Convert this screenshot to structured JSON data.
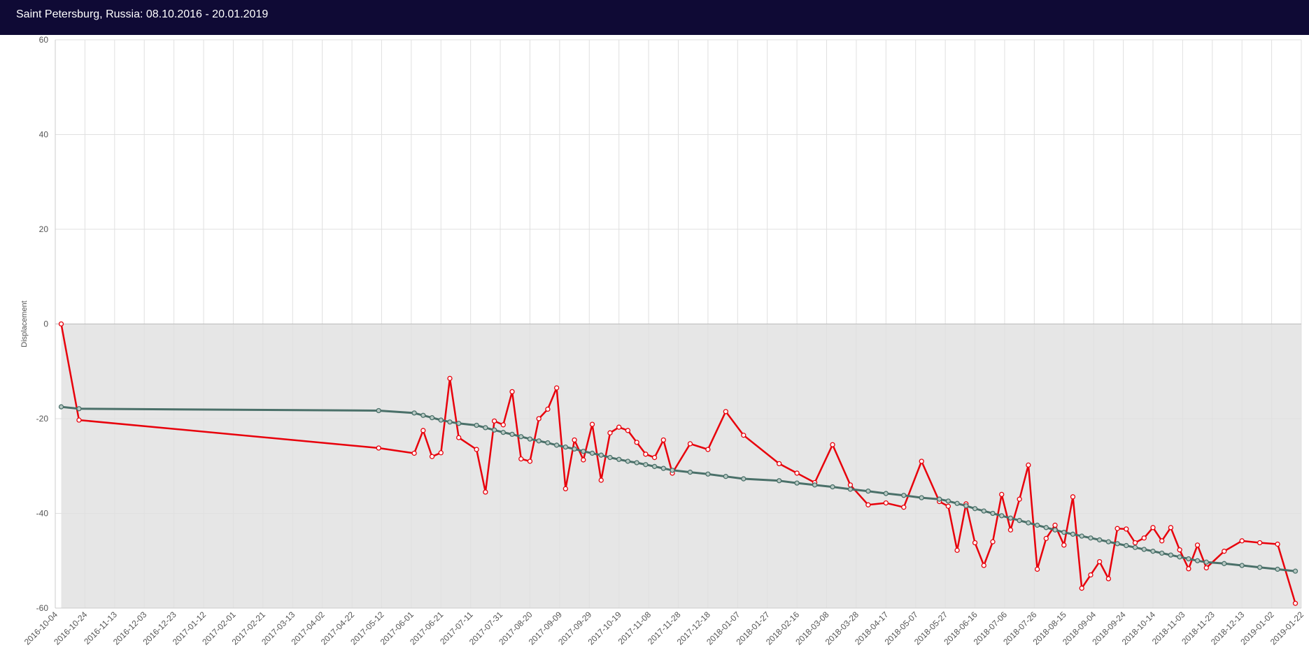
{
  "header": {
    "title": "Saint Petersburg, Russia: 08.10.2016 - 20.01.2019"
  },
  "chart_data": {
    "type": "line",
    "title": "Saint Petersburg, Russia: 08.10.2016 - 20.01.2019",
    "xlabel": "",
    "ylabel": "Displacement",
    "ylim": [
      -60,
      60
    ],
    "yticks": [
      60,
      40,
      20,
      0,
      -20,
      -40,
      -60
    ],
    "xlim": [
      "2016-10-04",
      "2019-01-22"
    ],
    "xticks": [
      "2016-10-04",
      "2016-10-24",
      "2016-11-13",
      "2016-12-03",
      "2016-12-23",
      "2017-01-12",
      "2017-02-01",
      "2017-02-21",
      "2017-03-13",
      "2017-04-02",
      "2017-04-22",
      "2017-05-12",
      "2017-06-01",
      "2017-06-21",
      "2017-07-11",
      "2017-07-31",
      "2017-08-20",
      "2017-09-09",
      "2017-09-29",
      "2017-10-19",
      "2017-11-08",
      "2017-11-28",
      "2017-12-18",
      "2018-01-07",
      "2018-01-27",
      "2018-02-16",
      "2018-03-08",
      "2018-03-28",
      "2018-04-17",
      "2018-05-07",
      "2018-05-27",
      "2018-06-16",
      "2018-07-06",
      "2018-07-26",
      "2018-08-15",
      "2018-09-04",
      "2018-09-24",
      "2018-10-14",
      "2018-11-03",
      "2018-11-23",
      "2018-12-13",
      "2019-01-02",
      "2019-01-22"
    ],
    "grid": true,
    "shaded_range": [
      -60,
      0
    ],
    "colors": {
      "measured": "#e8000b",
      "trend": "#4a7069",
      "shade": "#e6e6e6",
      "grid": "#e0e0e0",
      "zero": "#bbbbbb"
    },
    "series": [
      {
        "kind": "measured",
        "points": [
          [
            "2016-10-08",
            0
          ],
          [
            "2016-10-20",
            -20.3
          ],
          [
            "2017-05-10",
            -26.2
          ],
          [
            "2017-06-03",
            -27.3
          ],
          [
            "2017-06-09",
            -22.5
          ],
          [
            "2017-06-15",
            -28
          ],
          [
            "2017-06-21",
            -27.2
          ],
          [
            "2017-06-27",
            -11.5
          ],
          [
            "2017-07-03",
            -24
          ],
          [
            "2017-07-15",
            -26.5
          ],
          [
            "2017-07-21",
            -35.5
          ],
          [
            "2017-07-27",
            -20.5
          ],
          [
            "2017-08-02",
            -21.3
          ],
          [
            "2017-08-08",
            -14.3
          ],
          [
            "2017-08-14",
            -28.5
          ],
          [
            "2017-08-20",
            -29
          ],
          [
            "2017-08-26",
            -20
          ],
          [
            "2017-09-01",
            -18
          ],
          [
            "2017-09-07",
            -13.5
          ],
          [
            "2017-09-13",
            -34.8
          ],
          [
            "2017-09-19",
            -24.5
          ],
          [
            "2017-09-25",
            -28.7
          ],
          [
            "2017-10-01",
            -21.2
          ],
          [
            "2017-10-07",
            -33
          ],
          [
            "2017-10-13",
            -23
          ],
          [
            "2017-10-19",
            -21.8
          ],
          [
            "2017-10-25",
            -22.5
          ],
          [
            "2017-10-31",
            -25
          ],
          [
            "2017-11-06",
            -27.5
          ],
          [
            "2017-11-12",
            -28.2
          ],
          [
            "2017-11-18",
            -24.5
          ],
          [
            "2017-11-24",
            -31.5
          ],
          [
            "2017-12-06",
            -25.3
          ],
          [
            "2017-12-18",
            -26.5
          ],
          [
            "2017-12-30",
            -18.5
          ],
          [
            "2018-01-11",
            -23.5
          ],
          [
            "2018-02-04",
            -29.5
          ],
          [
            "2018-02-16",
            -31.5
          ],
          [
            "2018-02-28",
            -33.5
          ],
          [
            "2018-03-12",
            -25.5
          ],
          [
            "2018-03-24",
            -34
          ],
          [
            "2018-04-05",
            -38.2
          ],
          [
            "2018-04-17",
            -37.8
          ],
          [
            "2018-04-29",
            -38.7
          ],
          [
            "2018-05-11",
            -29
          ],
          [
            "2018-05-23",
            -37.5
          ],
          [
            "2018-05-29",
            -38.5
          ],
          [
            "2018-06-04",
            -47.8
          ],
          [
            "2018-06-10",
            -38
          ],
          [
            "2018-06-16",
            -46.2
          ],
          [
            "2018-06-22",
            -51
          ],
          [
            "2018-06-28",
            -46
          ],
          [
            "2018-07-04",
            -36
          ],
          [
            "2018-07-10",
            -43.5
          ],
          [
            "2018-07-16",
            -37
          ],
          [
            "2018-07-22",
            -29.8
          ],
          [
            "2018-07-28",
            -51.8
          ],
          [
            "2018-08-03",
            -45.3
          ],
          [
            "2018-08-09",
            -42.5
          ],
          [
            "2018-08-15",
            -46.7
          ],
          [
            "2018-08-21",
            -36.5
          ],
          [
            "2018-08-27",
            -55.8
          ],
          [
            "2018-09-02",
            -53
          ],
          [
            "2018-09-08",
            -50.2
          ],
          [
            "2018-09-14",
            -53.8
          ],
          [
            "2018-09-20",
            -43.2
          ],
          [
            "2018-09-26",
            -43.3
          ],
          [
            "2018-10-02",
            -46.2
          ],
          [
            "2018-10-08",
            -45.2
          ],
          [
            "2018-10-14",
            -43
          ],
          [
            "2018-10-20",
            -45.8
          ],
          [
            "2018-10-26",
            -43
          ],
          [
            "2018-11-01",
            -47.7
          ],
          [
            "2018-11-07",
            -51.7
          ],
          [
            "2018-11-13",
            -46.7
          ],
          [
            "2018-11-19",
            -51.5
          ],
          [
            "2018-12-01",
            -48
          ],
          [
            "2018-12-13",
            -45.8
          ],
          [
            "2018-12-25",
            -46.2
          ],
          [
            "2019-01-06",
            -46.5
          ],
          [
            "2019-01-18",
            -59
          ]
        ]
      },
      {
        "kind": "trend",
        "points": [
          [
            "2016-10-08",
            -17.5
          ],
          [
            "2016-10-20",
            -17.9
          ],
          [
            "2017-05-10",
            -18.3
          ],
          [
            "2017-06-03",
            -18.8
          ],
          [
            "2017-06-09",
            -19.3
          ],
          [
            "2017-06-15",
            -19.8
          ],
          [
            "2017-06-21",
            -20.3
          ],
          [
            "2017-06-27",
            -20.7
          ],
          [
            "2017-07-03",
            -21
          ],
          [
            "2017-07-15",
            -21.4
          ],
          [
            "2017-07-21",
            -21.9
          ],
          [
            "2017-07-27",
            -22.4
          ],
          [
            "2017-08-02",
            -22.9
          ],
          [
            "2017-08-08",
            -23.3
          ],
          [
            "2017-08-14",
            -23.8
          ],
          [
            "2017-08-20",
            -24.3
          ],
          [
            "2017-08-26",
            -24.7
          ],
          [
            "2017-09-01",
            -25.1
          ],
          [
            "2017-09-07",
            -25.6
          ],
          [
            "2017-09-13",
            -26
          ],
          [
            "2017-09-19",
            -26.4
          ],
          [
            "2017-09-25",
            -26.9
          ],
          [
            "2017-10-01",
            -27.3
          ],
          [
            "2017-10-07",
            -27.7
          ],
          [
            "2017-10-13",
            -28.2
          ],
          [
            "2017-10-19",
            -28.6
          ],
          [
            "2017-10-25",
            -29
          ],
          [
            "2017-10-31",
            -29.3
          ],
          [
            "2017-11-06",
            -29.7
          ],
          [
            "2017-11-12",
            -30.1
          ],
          [
            "2017-11-18",
            -30.5
          ],
          [
            "2017-11-24",
            -30.9
          ],
          [
            "2017-12-06",
            -31.3
          ],
          [
            "2017-12-18",
            -31.7
          ],
          [
            "2017-12-30",
            -32.2
          ],
          [
            "2018-01-11",
            -32.7
          ],
          [
            "2018-02-04",
            -33.1
          ],
          [
            "2018-02-16",
            -33.6
          ],
          [
            "2018-02-28",
            -34
          ],
          [
            "2018-03-12",
            -34.4
          ],
          [
            "2018-03-24",
            -34.9
          ],
          [
            "2018-04-05",
            -35.3
          ],
          [
            "2018-04-17",
            -35.8
          ],
          [
            "2018-04-29",
            -36.2
          ],
          [
            "2018-05-11",
            -36.7
          ],
          [
            "2018-05-23",
            -37
          ],
          [
            "2018-05-29",
            -37.4
          ],
          [
            "2018-06-04",
            -37.9
          ],
          [
            "2018-06-10",
            -38.4
          ],
          [
            "2018-06-16",
            -39
          ],
          [
            "2018-06-22",
            -39.5
          ],
          [
            "2018-06-28",
            -40
          ],
          [
            "2018-07-04",
            -40.5
          ],
          [
            "2018-07-10",
            -41
          ],
          [
            "2018-07-16",
            -41.5
          ],
          [
            "2018-07-22",
            -42
          ],
          [
            "2018-07-28",
            -42.5
          ],
          [
            "2018-08-03",
            -43
          ],
          [
            "2018-08-09",
            -43.5
          ],
          [
            "2018-08-15",
            -44
          ],
          [
            "2018-08-21",
            -44.4
          ],
          [
            "2018-08-27",
            -44.8
          ],
          [
            "2018-09-02",
            -45.2
          ],
          [
            "2018-09-08",
            -45.6
          ],
          [
            "2018-09-14",
            -46
          ],
          [
            "2018-09-20",
            -46.4
          ],
          [
            "2018-09-26",
            -46.8
          ],
          [
            "2018-10-02",
            -47.2
          ],
          [
            "2018-10-08",
            -47.6
          ],
          [
            "2018-10-14",
            -48
          ],
          [
            "2018-10-20",
            -48.4
          ],
          [
            "2018-10-26",
            -48.8
          ],
          [
            "2018-11-01",
            -49.2
          ],
          [
            "2018-11-07",
            -49.6
          ],
          [
            "2018-11-13",
            -50
          ],
          [
            "2018-11-19",
            -50.3
          ],
          [
            "2018-12-01",
            -50.6
          ],
          [
            "2018-12-13",
            -51
          ],
          [
            "2018-12-25",
            -51.4
          ],
          [
            "2019-01-06",
            -51.8
          ],
          [
            "2019-01-18",
            -52.2
          ]
        ]
      }
    ]
  }
}
